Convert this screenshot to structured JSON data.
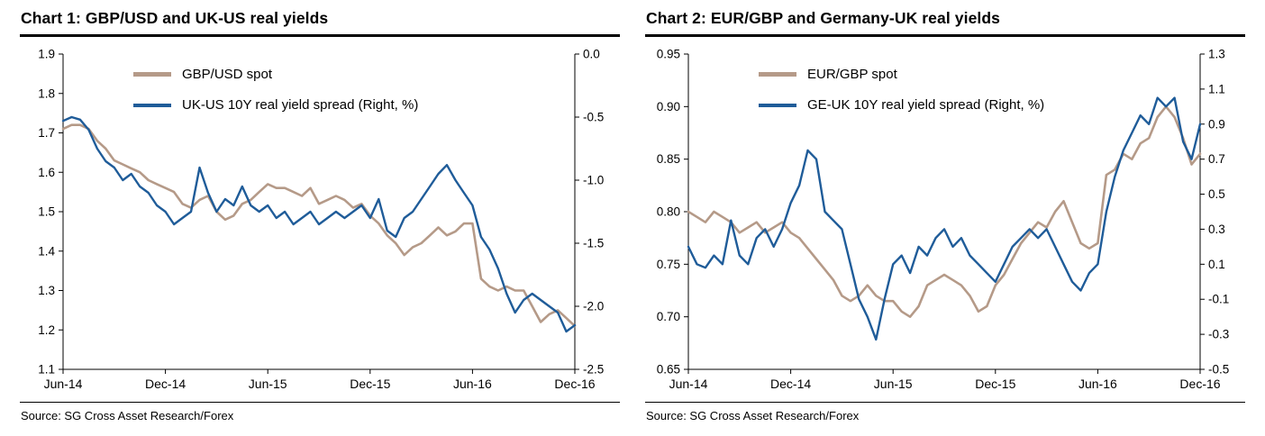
{
  "chart_data": [
    {
      "type": "line",
      "title": "Chart 1: GBP/USD and UK-US real yields",
      "source": "Source: SG Cross Asset Research/Forex",
      "grid": false,
      "legend_position": "top-left-inside",
      "axis_color": "#000000",
      "x_note": "x = months since Jun-2014, sampled every 0.5 month",
      "x_range": [
        0,
        30
      ],
      "x_ticks": [
        {
          "t": 0,
          "label": "Jun-14"
        },
        {
          "t": 6,
          "label": "Dec-14"
        },
        {
          "t": 12,
          "label": "Jun-15"
        },
        {
          "t": 18,
          "label": "Dec-15"
        },
        {
          "t": 24,
          "label": "Jun-16"
        },
        {
          "t": 30,
          "label": "Dec-16"
        }
      ],
      "left_axis": {
        "min": 1.1,
        "max": 1.9,
        "tick_labels": [
          "1.9",
          "1.8",
          "1.7",
          "1.6",
          "1.5",
          "1.4",
          "1.3",
          "1.2",
          "1.1"
        ]
      },
      "right_axis": {
        "min": -2.5,
        "max": 0.0,
        "tick_labels": [
          "0.0",
          "-0.5",
          "-1.0",
          "-1.5",
          "-2.0",
          "-2.5"
        ]
      },
      "x": [
        0,
        0.5,
        1,
        1.5,
        2,
        2.5,
        3,
        3.5,
        4,
        4.5,
        5,
        5.5,
        6,
        6.5,
        7,
        7.5,
        8,
        8.5,
        9,
        9.5,
        10,
        10.5,
        11,
        11.5,
        12,
        12.5,
        13,
        13.5,
        14,
        14.5,
        15,
        15.5,
        16,
        16.5,
        17,
        17.5,
        18,
        18.5,
        19,
        19.5,
        20,
        20.5,
        21,
        21.5,
        22,
        22.5,
        23,
        23.5,
        24,
        24.5,
        25,
        25.5,
        26,
        26.5,
        27,
        27.5,
        28,
        28.5,
        29,
        29.5,
        30
      ],
      "series": [
        {
          "name": "GBP/USD spot",
          "axis": "left",
          "color": "#b59a88",
          "stroke_width": 2.6,
          "values": [
            1.71,
            1.72,
            1.72,
            1.71,
            1.68,
            1.66,
            1.63,
            1.62,
            1.61,
            1.6,
            1.58,
            1.57,
            1.56,
            1.55,
            1.52,
            1.51,
            1.53,
            1.54,
            1.5,
            1.48,
            1.49,
            1.52,
            1.53,
            1.55,
            1.57,
            1.56,
            1.56,
            1.55,
            1.54,
            1.56,
            1.52,
            1.53,
            1.54,
            1.53,
            1.51,
            1.52,
            1.49,
            1.47,
            1.44,
            1.42,
            1.39,
            1.41,
            1.42,
            1.44,
            1.46,
            1.44,
            1.45,
            1.47,
            1.47,
            1.33,
            1.31,
            1.3,
            1.31,
            1.3,
            1.3,
            1.26,
            1.22,
            1.24,
            1.25,
            1.23,
            1.21
          ]
        },
        {
          "name": "UK-US 10Y real yield spread (Right, %)",
          "axis": "right",
          "color": "#1f5c99",
          "stroke_width": 2.4,
          "values": [
            -0.53,
            -0.5,
            -0.52,
            -0.6,
            -0.75,
            -0.85,
            -0.9,
            -1.0,
            -0.95,
            -1.05,
            -1.1,
            -1.2,
            -1.25,
            -1.35,
            -1.3,
            -1.25,
            -0.9,
            -1.1,
            -1.25,
            -1.15,
            -1.2,
            -1.05,
            -1.2,
            -1.25,
            -1.2,
            -1.3,
            -1.25,
            -1.35,
            -1.3,
            -1.25,
            -1.35,
            -1.3,
            -1.25,
            -1.3,
            -1.25,
            -1.2,
            -1.3,
            -1.15,
            -1.4,
            -1.45,
            -1.3,
            -1.25,
            -1.15,
            -1.05,
            -0.95,
            -0.88,
            -1.0,
            -1.1,
            -1.2,
            -1.45,
            -1.55,
            -1.7,
            -1.9,
            -2.05,
            -1.95,
            -1.9,
            -1.95,
            -2.0,
            -2.05,
            -2.2,
            -2.15
          ]
        }
      ]
    },
    {
      "type": "line",
      "title": "Chart 2: EUR/GBP and Germany-UK real yields",
      "source": "Source: SG Cross Asset Research/Forex",
      "grid": false,
      "legend_position": "top-left-inside",
      "axis_color": "#000000",
      "x_note": "x = months since Jun-2014, sampled every 0.5 month",
      "x_range": [
        0,
        30
      ],
      "x_ticks": [
        {
          "t": 0,
          "label": "Jun-14"
        },
        {
          "t": 6,
          "label": "Dec-14"
        },
        {
          "t": 12,
          "label": "Jun-15"
        },
        {
          "t": 18,
          "label": "Dec-15"
        },
        {
          "t": 24,
          "label": "Jun-16"
        },
        {
          "t": 30,
          "label": "Dec-16"
        }
      ],
      "left_axis": {
        "min": 0.65,
        "max": 0.95,
        "tick_labels": [
          "0.95",
          "0.90",
          "0.85",
          "0.80",
          "0.75",
          "0.70",
          "0.65"
        ]
      },
      "right_axis": {
        "min": -0.5,
        "max": 1.3,
        "tick_labels": [
          "1.3",
          "1.1",
          "0.9",
          "0.7",
          "0.5",
          "0.3",
          "0.1",
          "-0.1",
          "-0.3",
          "-0.5"
        ]
      },
      "x": [
        0,
        0.5,
        1,
        1.5,
        2,
        2.5,
        3,
        3.5,
        4,
        4.5,
        5,
        5.5,
        6,
        6.5,
        7,
        7.5,
        8,
        8.5,
        9,
        9.5,
        10,
        10.5,
        11,
        11.5,
        12,
        12.5,
        13,
        13.5,
        14,
        14.5,
        15,
        15.5,
        16,
        16.5,
        17,
        17.5,
        18,
        18.5,
        19,
        19.5,
        20,
        20.5,
        21,
        21.5,
        22,
        22.5,
        23,
        23.5,
        24,
        24.5,
        25,
        25.5,
        26,
        26.5,
        27,
        27.5,
        28,
        28.5,
        29,
        29.5,
        30
      ],
      "series": [
        {
          "name": "EUR/GBP spot",
          "axis": "left",
          "color": "#b59a88",
          "stroke_width": 2.6,
          "values": [
            0.8,
            0.795,
            0.79,
            0.8,
            0.795,
            0.79,
            0.78,
            0.785,
            0.79,
            0.78,
            0.785,
            0.79,
            0.78,
            0.775,
            0.765,
            0.755,
            0.745,
            0.735,
            0.72,
            0.715,
            0.72,
            0.73,
            0.72,
            0.715,
            0.715,
            0.705,
            0.7,
            0.71,
            0.73,
            0.735,
            0.74,
            0.735,
            0.73,
            0.72,
            0.705,
            0.71,
            0.73,
            0.74,
            0.755,
            0.77,
            0.78,
            0.79,
            0.785,
            0.8,
            0.81,
            0.79,
            0.77,
            0.765,
            0.77,
            0.835,
            0.84,
            0.855,
            0.85,
            0.865,
            0.87,
            0.89,
            0.9,
            0.89,
            0.87,
            0.845,
            0.855
          ]
        },
        {
          "name": "GE-UK 10Y real yield spread (Right, %)",
          "axis": "right",
          "color": "#1f5c99",
          "stroke_width": 2.4,
          "values": [
            0.2,
            0.1,
            0.08,
            0.15,
            0.1,
            0.35,
            0.15,
            0.1,
            0.25,
            0.3,
            0.2,
            0.3,
            0.45,
            0.55,
            0.75,
            0.7,
            0.4,
            0.35,
            0.3,
            0.1,
            -0.1,
            -0.2,
            -0.33,
            -0.1,
            0.1,
            0.15,
            0.05,
            0.2,
            0.15,
            0.25,
            0.3,
            0.2,
            0.25,
            0.15,
            0.1,
            0.05,
            0.0,
            0.1,
            0.2,
            0.25,
            0.3,
            0.25,
            0.3,
            0.2,
            0.1,
            0.0,
            -0.05,
            0.05,
            0.1,
            0.4,
            0.6,
            0.75,
            0.85,
            0.95,
            0.9,
            1.05,
            1.0,
            1.05,
            0.8,
            0.7,
            0.9
          ]
        }
      ]
    }
  ]
}
